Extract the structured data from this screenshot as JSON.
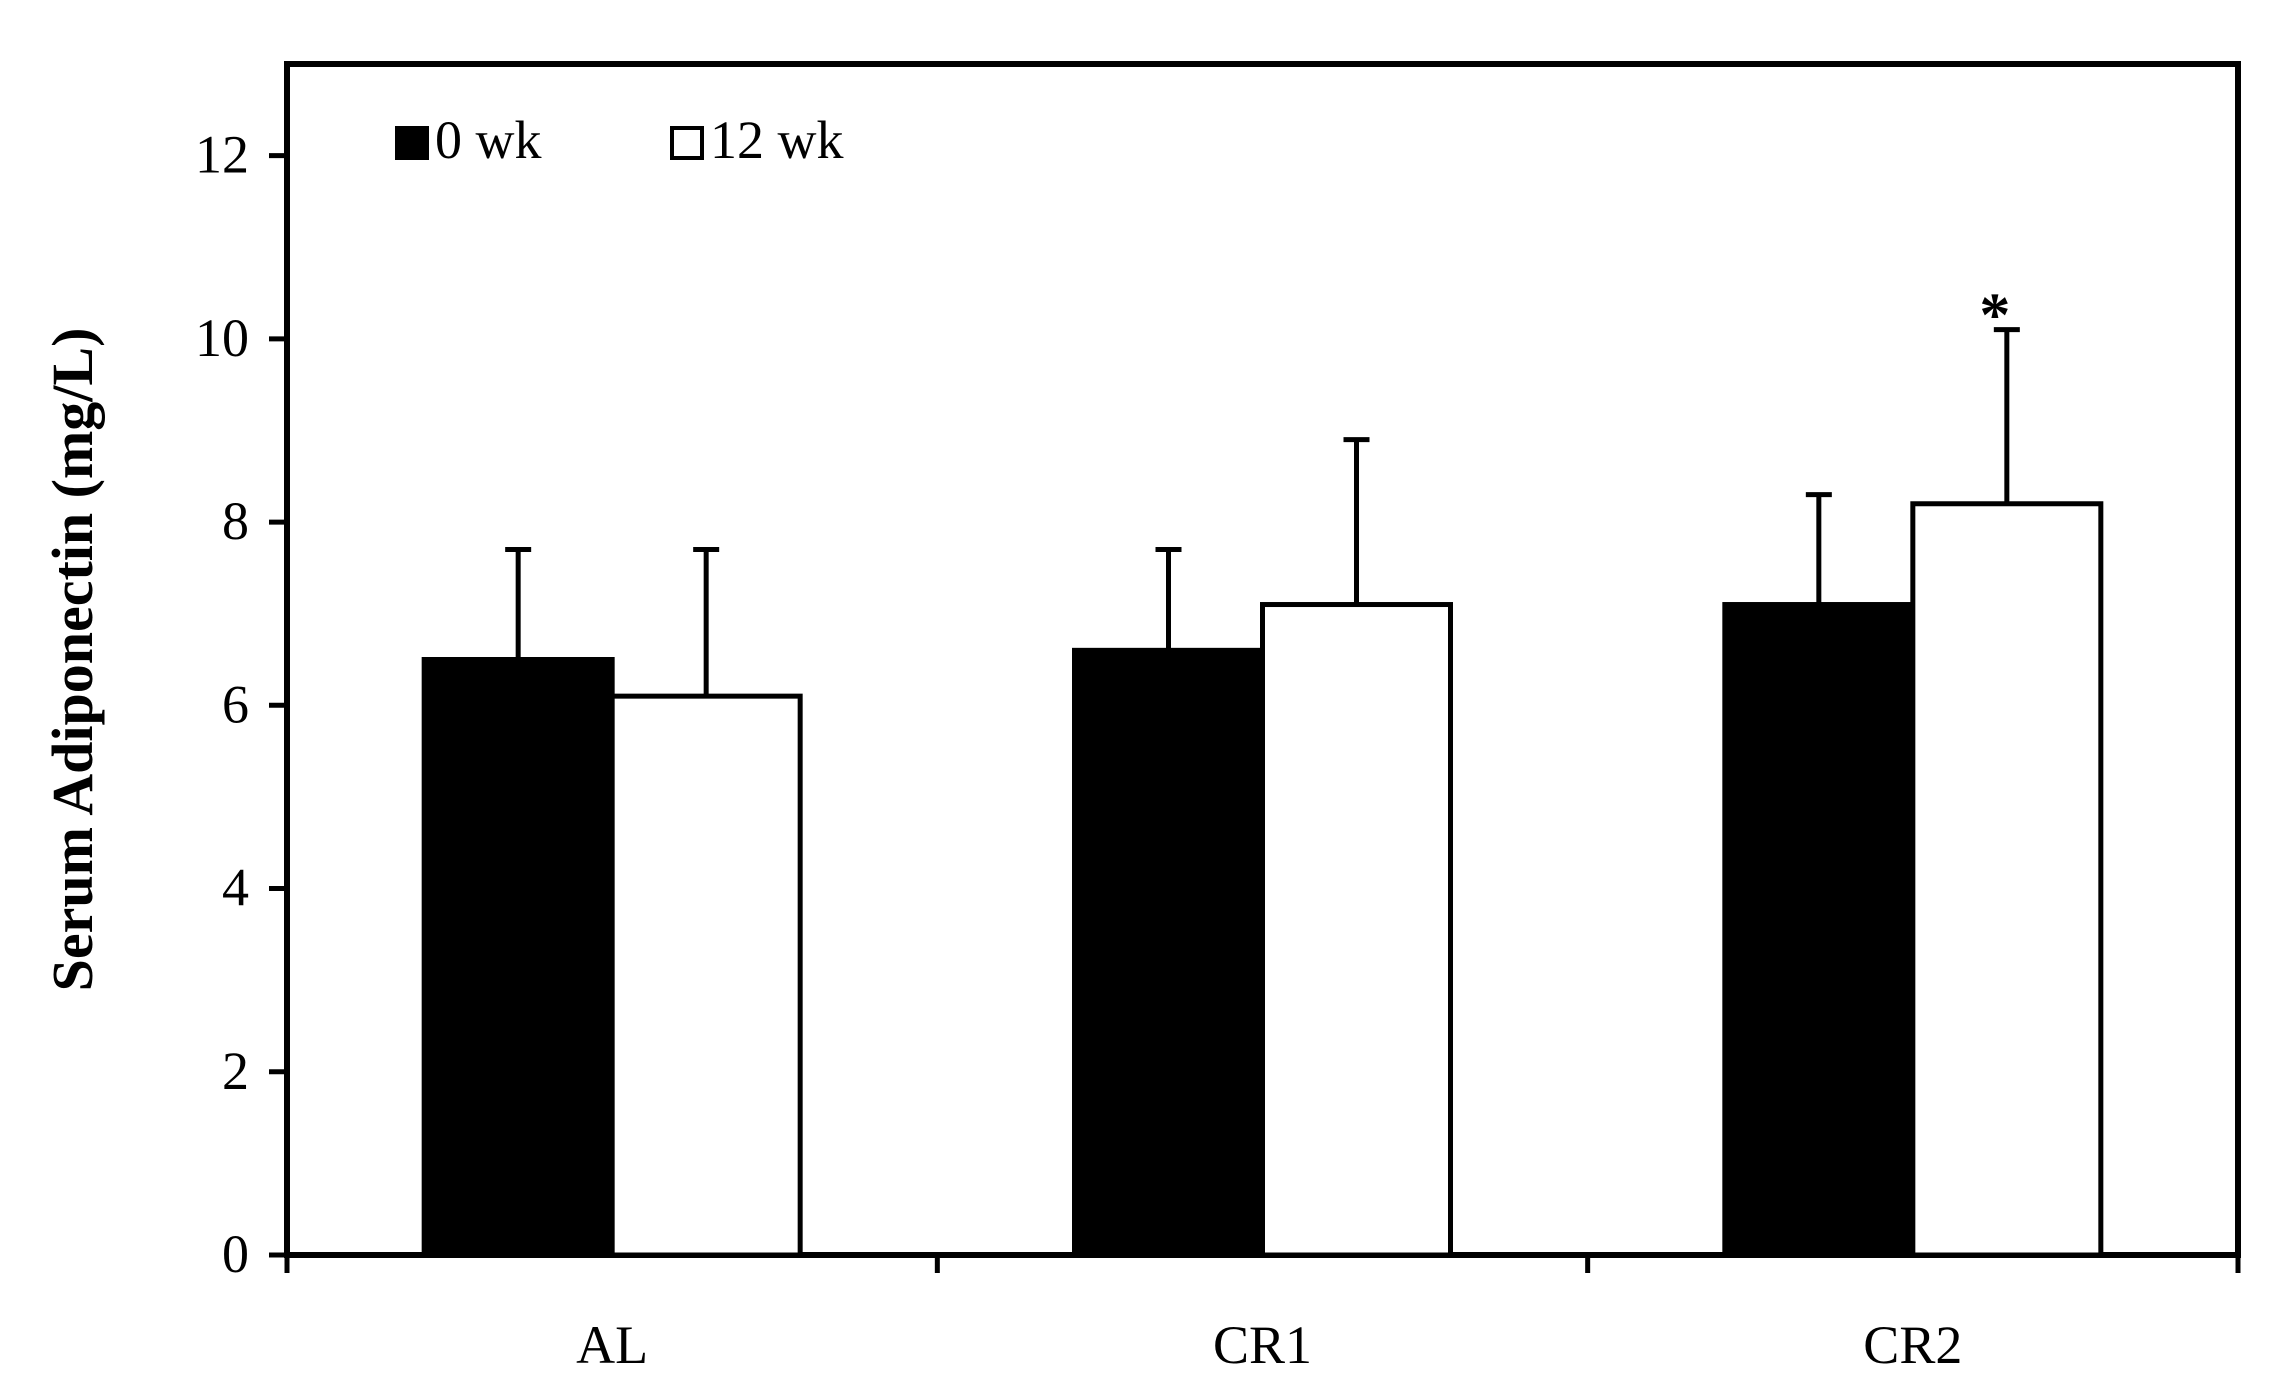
{
  "chart_data": {
    "type": "bar",
    "title": "",
    "xlabel": "",
    "ylabel": "Serum Adiponectin (mg/L)",
    "categories": [
      "AL",
      "CR1",
      "CR2"
    ],
    "ylim": [
      0,
      13
    ],
    "yticks": [
      "0",
      "2",
      "4",
      "6",
      "8",
      "10",
      "12"
    ],
    "legend_position": "top-left",
    "grid": false,
    "series": [
      {
        "name": "0 wk",
        "fill": "#000000",
        "values": [
          6.5,
          6.6,
          7.1
        ],
        "error": [
          1.2,
          1.1,
          1.2
        ]
      },
      {
        "name": "12 wk",
        "fill": "#ffffff",
        "values": [
          6.1,
          7.1,
          8.2
        ],
        "error": [
          1.6,
          1.8,
          1.9
        ]
      }
    ],
    "annotations": [
      {
        "text": "*",
        "category": "CR2",
        "series": "12 wk"
      }
    ]
  }
}
